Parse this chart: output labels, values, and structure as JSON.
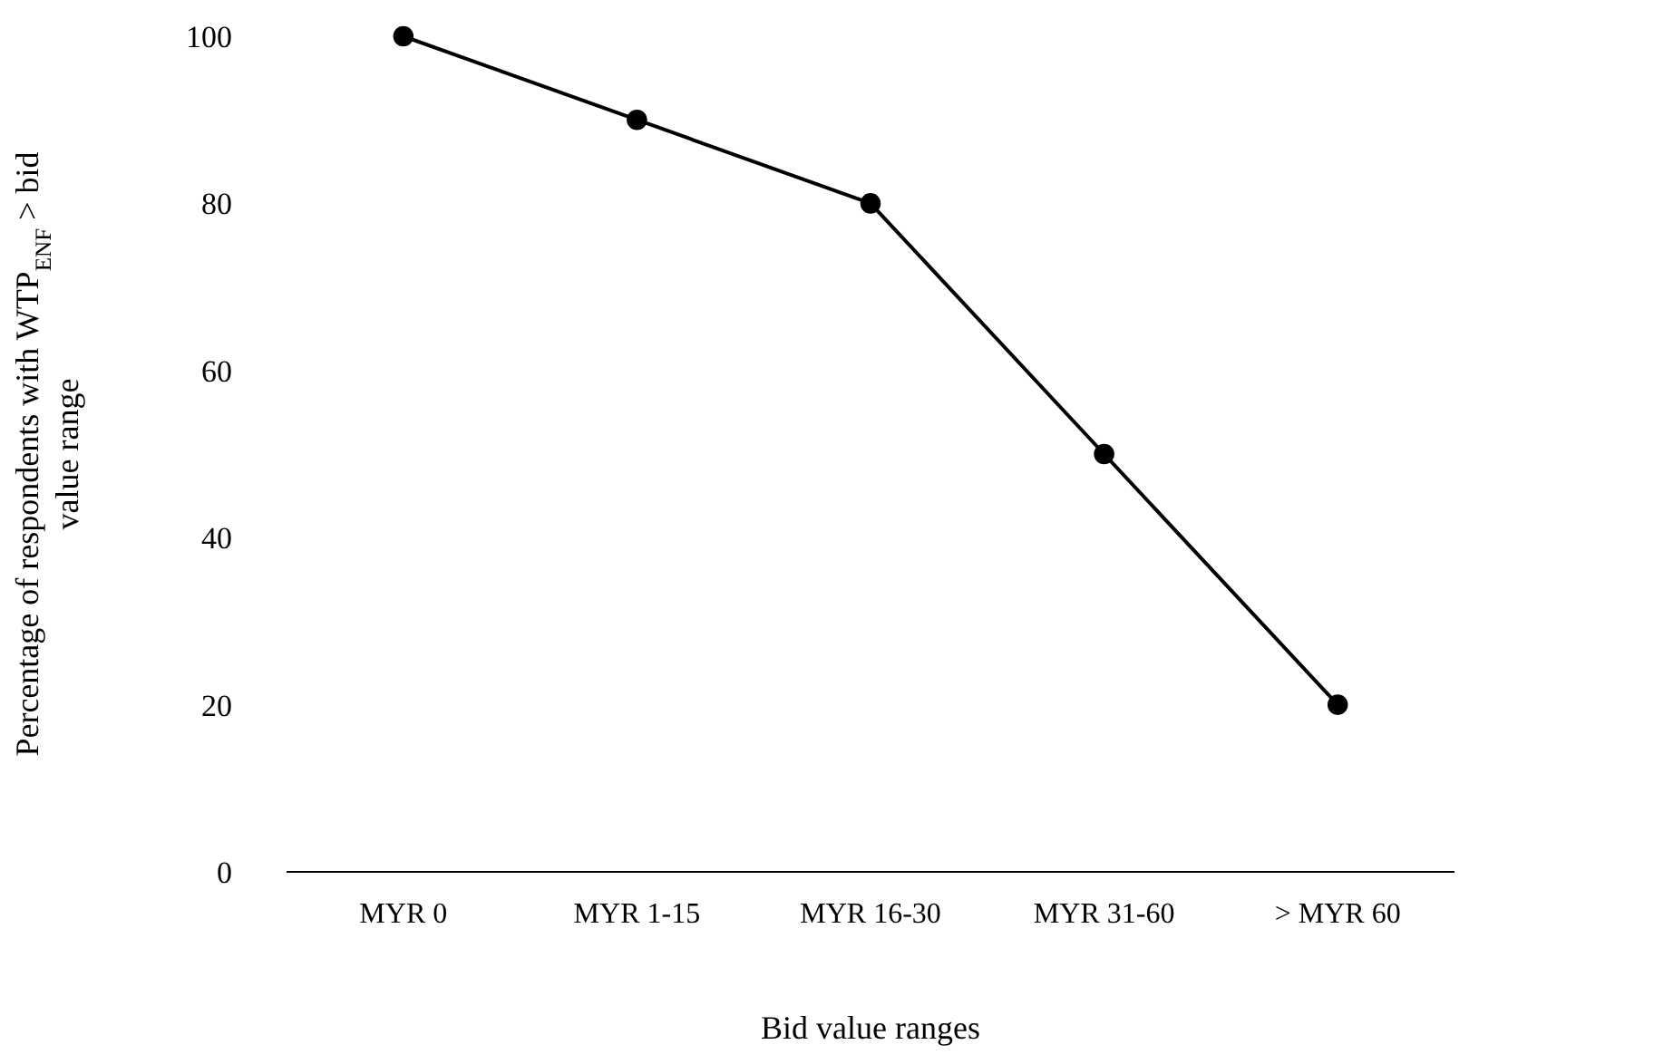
{
  "chart_data": {
    "type": "line",
    "xlabel": "Bid value ranges",
    "ylabel": "Percentage of respondents with WTP$_{ENF}$ > bid value range",
    "categories": [
      "MYR 0",
      "MYR 1-15",
      "MYR 16-30",
      "MYR 31-60",
      "> MYR 60"
    ],
    "series": [
      {
        "color": "#000000",
        "values": [
          100,
          90,
          80,
          50,
          20
        ]
      }
    ],
    "ylim": [
      0,
      100
    ],
    "yticks": [
      0,
      20,
      40,
      60,
      80,
      100
    ],
    "grid": false,
    "marker": "circle",
    "line_style": "solid"
  }
}
